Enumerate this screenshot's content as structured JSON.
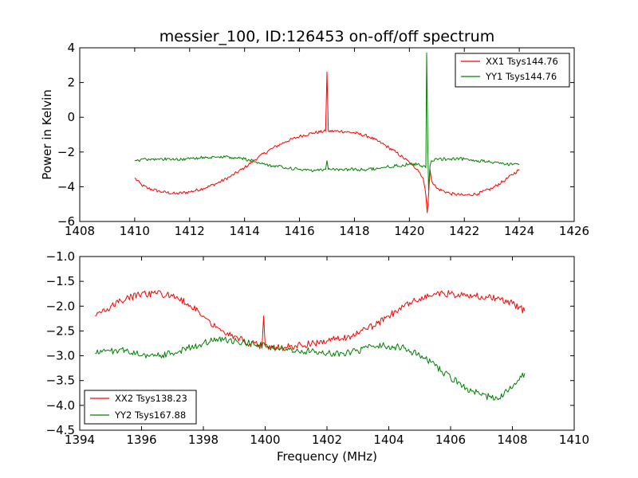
{
  "figure": {
    "title": "messier_100, ID:126453 on-off/off spectrum",
    "background": "#ffffff"
  },
  "chart_data": [
    {
      "type": "line",
      "title": "messier_100, ID:126453 on-off/off spectrum",
      "xlabel": "",
      "ylabel": "Power in Kelvin",
      "xlim": [
        1408,
        1426
      ],
      "ylim": [
        -6,
        4
      ],
      "xticks": [
        1408,
        1410,
        1412,
        1414,
        1416,
        1418,
        1420,
        1422,
        1424,
        1426
      ],
      "yticks": [
        -6,
        -4,
        -2,
        0,
        2,
        4
      ],
      "xtick_labels": [
        "1408",
        "1410",
        "1412",
        "1414",
        "1416",
        "1418",
        "1420",
        "1422",
        "1424",
        "1426"
      ],
      "ytick_labels": [
        "−6",
        "−4",
        "−2",
        "0",
        "2",
        "4"
      ],
      "legend_position": "top-right",
      "series": [
        {
          "name": "XX1 Tsys144.76",
          "color": "#ff0000",
          "x": [
            1410.0,
            1410.25,
            1410.5,
            1411.0,
            1411.5,
            1412.0,
            1412.5,
            1413.0,
            1413.5,
            1414.0,
            1414.5,
            1415.0,
            1415.5,
            1416.0,
            1416.5,
            1416.95,
            1417.0,
            1417.05,
            1417.5,
            1418.0,
            1418.5,
            1419.0,
            1419.5,
            1420.0,
            1420.3,
            1420.5,
            1420.6,
            1420.65,
            1420.7,
            1420.75,
            1420.8,
            1421.0,
            1421.5,
            1422.0,
            1422.5,
            1423.0,
            1423.5,
            1424.0
          ],
          "y": [
            -3.5,
            -3.9,
            -4.1,
            -4.3,
            -4.4,
            -4.3,
            -4.1,
            -3.8,
            -3.4,
            -2.9,
            -2.3,
            -1.8,
            -1.4,
            -1.1,
            -0.9,
            -0.8,
            2.6,
            -0.8,
            -0.8,
            -0.9,
            -1.1,
            -1.5,
            -2.0,
            -2.6,
            -3.0,
            -3.5,
            -4.5,
            -5.5,
            -4.5,
            -3.0,
            -3.6,
            -4.1,
            -4.4,
            -4.5,
            -4.4,
            -4.1,
            -3.6,
            -3.0
          ]
        },
        {
          "name": "YY1 Tsys144.76",
          "color": "#008000",
          "x": [
            1410.0,
            1410.5,
            1411.0,
            1411.5,
            1412.0,
            1412.5,
            1413.0,
            1413.5,
            1414.0,
            1414.5,
            1415.0,
            1415.5,
            1416.0,
            1416.5,
            1416.95,
            1417.0,
            1417.05,
            1417.5,
            1418.0,
            1418.5,
            1419.0,
            1419.5,
            1420.0,
            1420.3,
            1420.5,
            1420.6,
            1420.63,
            1420.67,
            1420.7,
            1420.75,
            1420.8,
            1421.0,
            1421.5,
            1422.0,
            1422.5,
            1423.0,
            1423.5,
            1424.0
          ],
          "y": [
            -2.5,
            -2.4,
            -2.4,
            -2.4,
            -2.4,
            -2.3,
            -2.3,
            -2.3,
            -2.4,
            -2.6,
            -2.8,
            -2.9,
            -3.0,
            -3.1,
            -3.0,
            -2.5,
            -3.0,
            -3.0,
            -3.0,
            -3.0,
            -2.9,
            -2.8,
            -2.7,
            -2.7,
            -2.8,
            -2.9,
            3.7,
            -1.5,
            -4.2,
            -2.8,
            -2.5,
            -2.4,
            -2.4,
            -2.4,
            -2.5,
            -2.6,
            -2.7,
            -2.7
          ]
        }
      ]
    },
    {
      "type": "line",
      "title": "",
      "xlabel": "Frequency (MHz)",
      "ylabel": "",
      "xlim": [
        1394,
        1410
      ],
      "ylim": [
        -4.5,
        -1.0
      ],
      "xticks": [
        1394,
        1396,
        1398,
        1400,
        1402,
        1404,
        1406,
        1408,
        1410
      ],
      "yticks": [
        -4.5,
        -4.0,
        -3.5,
        -3.0,
        -2.5,
        -2.0,
        -1.5,
        -1.0
      ],
      "xtick_labels": [
        "1394",
        "1396",
        "1398",
        "1400",
        "1402",
        "1404",
        "1406",
        "1408",
        "1410"
      ],
      "ytick_labels": [
        "−4.5",
        "−4.0",
        "−3.5",
        "−3.0",
        "−2.5",
        "−2.0",
        "−1.5",
        "−1.0"
      ],
      "legend_position": "bottom-left",
      "series": [
        {
          "name": "XX2 Tsys138.23",
          "color": "#ff0000",
          "x": [
            1394.5,
            1395.0,
            1395.5,
            1396.0,
            1396.5,
            1397.0,
            1397.5,
            1398.0,
            1398.5,
            1399.0,
            1399.5,
            1399.9,
            1399.95,
            1400.0,
            1400.5,
            1401.0,
            1401.5,
            1402.0,
            1402.5,
            1403.0,
            1403.5,
            1404.0,
            1404.5,
            1405.0,
            1405.5,
            1406.0,
            1406.5,
            1407.0,
            1407.5,
            1408.0,
            1408.4
          ],
          "y": [
            -2.2,
            -2.0,
            -1.85,
            -1.75,
            -1.75,
            -1.8,
            -1.95,
            -2.2,
            -2.45,
            -2.6,
            -2.75,
            -2.8,
            -2.2,
            -2.8,
            -2.85,
            -2.8,
            -2.75,
            -2.7,
            -2.65,
            -2.55,
            -2.4,
            -2.2,
            -2.0,
            -1.85,
            -1.75,
            -1.75,
            -1.8,
            -1.8,
            -1.85,
            -1.95,
            -2.1
          ]
        },
        {
          "name": "YY2 Tsys167.88",
          "color": "#008000",
          "x": [
            1394.5,
            1395.0,
            1395.5,
            1396.0,
            1396.5,
            1397.0,
            1397.5,
            1398.0,
            1398.5,
            1399.0,
            1399.5,
            1400.0,
            1400.5,
            1401.0,
            1401.5,
            1402.0,
            1402.5,
            1403.0,
            1403.5,
            1404.0,
            1404.5,
            1405.0,
            1405.5,
            1406.0,
            1406.5,
            1407.0,
            1407.5,
            1408.0,
            1408.4
          ],
          "y": [
            -2.95,
            -2.9,
            -2.9,
            -3.0,
            -3.0,
            -2.95,
            -2.85,
            -2.75,
            -2.65,
            -2.7,
            -2.75,
            -2.8,
            -2.85,
            -2.9,
            -2.9,
            -2.95,
            -2.95,
            -2.9,
            -2.8,
            -2.8,
            -2.85,
            -3.0,
            -3.2,
            -3.45,
            -3.65,
            -3.8,
            -3.85,
            -3.65,
            -3.35
          ]
        }
      ]
    }
  ]
}
